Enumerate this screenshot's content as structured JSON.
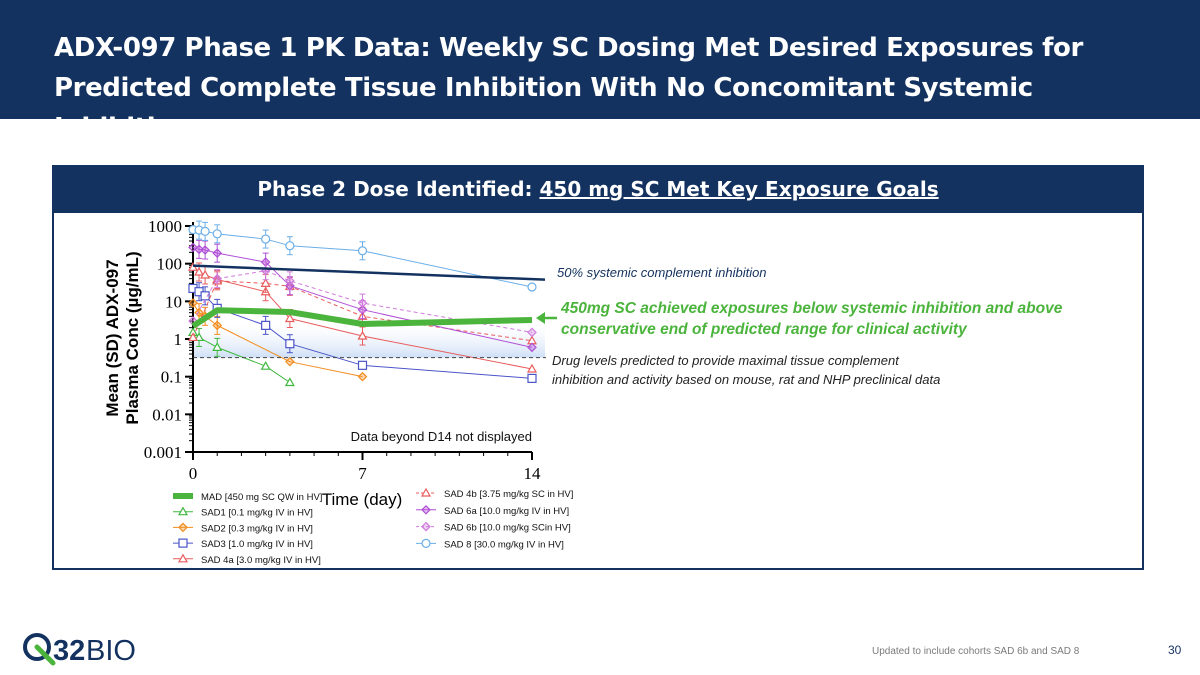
{
  "title": "ADX-097 Phase 1 PK Data: Weekly SC Dosing Met Desired Exposures for Predicted Complete Tissue Inhibition With No Concomitant Systemic Inhibition",
  "panel": {
    "heading_prefix": "Phase 2 Dose Identified:",
    "heading_highlight": "450 mg SC Met Key Exposure Goals"
  },
  "footer": {
    "note": "Updated to include cohorts SAD 6b and SAD 8",
    "page": "30"
  },
  "logo": {
    "text": "Q32 BIO",
    "digits": "32",
    "word": "BIO"
  },
  "colors": {
    "navy": "#13325f",
    "green": "#4bb43c",
    "white": "#ffffff"
  },
  "chart_data": {
    "type": "line",
    "y_scale": "log",
    "xlabel": "Time (day)",
    "ylabel_line1": "Mean (SD) ADX-097",
    "ylabel_line2": "Plasma Conc (µg/mL)",
    "x_ticks": [
      0,
      7,
      14
    ],
    "y_ticks": [
      {
        "v": 1000,
        "label": "1000"
      },
      {
        "v": 100,
        "label": "100"
      },
      {
        "v": 10,
        "label": "10"
      },
      {
        "v": 1,
        "label": "1"
      },
      {
        "v": 0.1,
        "label": "0.1"
      },
      {
        "v": 0.01,
        "label": "0.01"
      },
      {
        "v": 0.001,
        "label": "0.001"
      }
    ],
    "xlim": [
      0,
      14
    ],
    "ylim": [
      0.001,
      1000
    ],
    "systemic_threshold": 40,
    "tissue_threshold": 0.32,
    "series": [
      {
        "name": "MAD [450 mg SC QW in HV]",
        "color": "#4bb43c",
        "marker": "none",
        "dash": false,
        "width": 6,
        "x": [
          0,
          1,
          4,
          7,
          14
        ],
        "y": [
          2.2,
          5.8,
          5.2,
          2.5,
          3.2
        ]
      },
      {
        "name": "SAD1 [0.1 mg/kg IV in HV]",
        "color": "#3fb83f",
        "marker": "triangle",
        "dash": false,
        "width": 1,
        "x": [
          0,
          0.25,
          1,
          3,
          4
        ],
        "y": [
          1.5,
          1.1,
          0.6,
          0.19,
          0.07
        ]
      },
      {
        "name": "SAD2 [0.3 mg/kg IV in HV]",
        "color": "#f28c1e",
        "marker": "diamond",
        "dash": false,
        "width": 1,
        "x": [
          0,
          0.25,
          0.5,
          1,
          4,
          7
        ],
        "y": [
          9,
          5,
          4,
          2.3,
          0.25,
          0.1
        ]
      },
      {
        "name": "SAD3 [1.0 mg/kg IV in HV]",
        "color": "#4a55c8",
        "marker": "square",
        "dash": false,
        "width": 1,
        "x": [
          0,
          0.25,
          0.5,
          1,
          3,
          4,
          7,
          14
        ],
        "y": [
          22,
          18,
          14,
          6.5,
          2.3,
          0.75,
          0.2,
          0.09
        ]
      },
      {
        "name": "SAD 4a [3.0 mg/kg IV in HV]",
        "color": "#e85d5d",
        "marker": "triangle",
        "dash": false,
        "width": 1,
        "x": [
          0,
          0.25,
          0.5,
          1,
          3,
          4,
          7,
          14
        ],
        "y": [
          80,
          60,
          50,
          38,
          18,
          3.5,
          1.2,
          0.16
        ]
      },
      {
        "name": "SAD 4b [3.75 mg/kg SC in HV]",
        "color": "#e85d5d",
        "marker": "triangle",
        "dash": true,
        "width": 1,
        "x": [
          0,
          1,
          3,
          4,
          7,
          14
        ],
        "y": [
          1.1,
          35,
          30,
          25,
          4,
          0.9
        ]
      },
      {
        "name": "SAD 6a [10.0 mg/kg IV in HV]",
        "color": "#b04fd6",
        "marker": "diamond",
        "dash": false,
        "width": 1,
        "x": [
          0,
          0.25,
          0.5,
          1,
          3,
          4,
          7,
          14
        ],
        "y": [
          270,
          240,
          230,
          190,
          110,
          26,
          6,
          0.6
        ]
      },
      {
        "name": "SAD 6b [10.0 mg/kg SCin HV]",
        "color": "#d07bdc",
        "marker": "diamond",
        "dash": true,
        "width": 1,
        "x": [
          0,
          1,
          3,
          4,
          7,
          14
        ],
        "y": [
          3,
          40,
          65,
          35,
          9,
          1.5
        ]
      },
      {
        "name": "SAD 8 [30.0 mg/kg IV in HV]",
        "color": "#6aaee8",
        "marker": "circle",
        "dash": false,
        "width": 1,
        "x": [
          0,
          0.25,
          0.5,
          1,
          3,
          4,
          7,
          14
        ],
        "y": [
          800,
          780,
          720,
          620,
          450,
          300,
          220,
          24
        ]
      }
    ],
    "annotations": {
      "systemic": "50% systemic complement inhibition",
      "green_line1": "450mg SC achieved exposures below systemic inhibition and above",
      "green_line2": "conservative end of predicted range for clinical activity",
      "tissue_line1": "Drug levels predicted to provide maximal tissue complement",
      "tissue_line2": "inhibition and activity based on mouse, rat and NHP preclinical data",
      "beyond": "Data beyond D14 not displayed"
    }
  }
}
